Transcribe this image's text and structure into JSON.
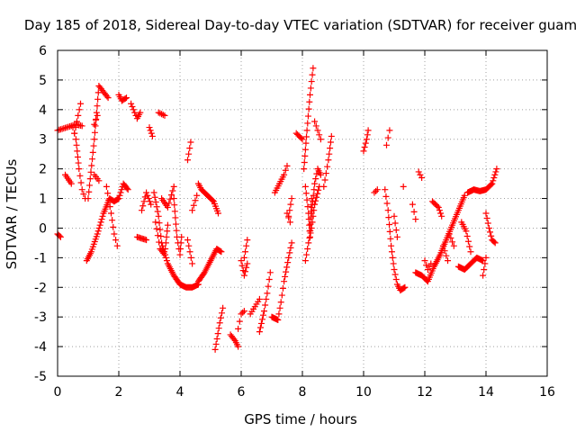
{
  "chart_data": {
    "type": "scatter",
    "title": "Day 185 of 2018, Sidereal Day-to-day VTEC variation (SDTVAR) for receiver guam",
    "xlabel": "GPS time / hours",
    "ylabel": "SDTVAR / TECUs",
    "xlim": [
      0,
      16
    ],
    "ylim": [
      -5,
      6
    ],
    "grid": true,
    "marker": "+",
    "colors": {
      "series": "#ff0000",
      "grid": "#a0a0a0",
      "axis": "#000000",
      "text": "#000000"
    },
    "x_ticks": [
      {
        "value": 0,
        "label": "0"
      },
      {
        "value": 2,
        "label": "2"
      },
      {
        "value": 4,
        "label": "4"
      },
      {
        "value": 6,
        "label": "6"
      },
      {
        "value": 8,
        "label": "8"
      },
      {
        "value": 10,
        "label": "10"
      },
      {
        "value": 12,
        "label": "12"
      },
      {
        "value": 14,
        "label": "14"
      },
      {
        "value": 16,
        "label": "16"
      }
    ],
    "y_ticks": [
      {
        "value": -5,
        "label": "-5"
      },
      {
        "value": -4,
        "label": "-4"
      },
      {
        "value": -3,
        "label": "-3"
      },
      {
        "value": -2,
        "label": "-2"
      },
      {
        "value": -1,
        "label": "-1"
      },
      {
        "value": 0,
        "label": "0"
      },
      {
        "value": 1,
        "label": "1"
      },
      {
        "value": 2,
        "label": "2"
      },
      {
        "value": 3,
        "label": "3"
      },
      {
        "value": 4,
        "label": "4"
      },
      {
        "value": 5,
        "label": "5"
      },
      {
        "value": 6,
        "label": "6"
      }
    ],
    "segments": [
      {
        "points": [
          [
            0.0,
            3.3
          ],
          [
            0.3,
            3.4
          ],
          [
            0.6,
            3.5
          ],
          [
            0.8,
            3.45
          ]
        ],
        "step": 0.05
      },
      {
        "points": [
          [
            0.0,
            -0.2
          ],
          [
            0.1,
            -0.3
          ]
        ],
        "step": 0.04
      },
      {
        "points": [
          [
            0.25,
            1.8
          ],
          [
            0.45,
            1.5
          ]
        ],
        "step": 0.04
      },
      {
        "points": [
          [
            0.5,
            3.4
          ],
          [
            0.6,
            3.0
          ],
          [
            0.7,
            2.0
          ],
          [
            0.8,
            1.3
          ],
          [
            0.9,
            1.0
          ]
        ],
        "step": 0.04
      },
      {
        "points": [
          [
            0.55,
            3.2
          ],
          [
            0.75,
            4.2
          ]
        ],
        "step": 0.05
      },
      {
        "points": [
          [
            0.95,
            -1.1
          ],
          [
            1.1,
            -0.8
          ],
          [
            1.3,
            -0.2
          ],
          [
            1.5,
            0.5
          ],
          [
            1.7,
            1.0
          ],
          [
            1.85,
            0.9
          ],
          [
            2.0,
            1.0
          ],
          [
            2.15,
            1.5
          ],
          [
            2.3,
            1.3
          ]
        ],
        "step": 0.03
      },
      {
        "points": [
          [
            1.0,
            1.0
          ],
          [
            1.2,
            3.0
          ],
          [
            1.35,
            4.8
          ],
          [
            1.5,
            4.6
          ],
          [
            1.65,
            4.4
          ]
        ],
        "step": 0.04
      },
      {
        "points": [
          [
            1.2,
            1.8
          ],
          [
            1.35,
            1.6
          ]
        ],
        "step": 0.05
      },
      {
        "points": [
          [
            1.6,
            1.4
          ],
          [
            1.75,
            0.5
          ],
          [
            1.85,
            -0.2
          ],
          [
            1.95,
            -0.6
          ]
        ],
        "step": 0.04
      },
      {
        "points": [
          [
            1.2,
            3.5
          ],
          [
            1.3,
            3.8
          ]
        ],
        "step": 0.05
      },
      {
        "points": [
          [
            2.0,
            4.5
          ],
          [
            2.1,
            4.3
          ],
          [
            2.25,
            4.4
          ]
        ],
        "step": 0.04
      },
      {
        "points": [
          [
            2.4,
            4.2
          ],
          [
            2.6,
            3.7
          ],
          [
            2.7,
            3.9
          ]
        ],
        "step": 0.04
      },
      {
        "points": [
          [
            2.6,
            -0.3
          ],
          [
            2.9,
            -0.4
          ]
        ],
        "step": 0.04
      },
      {
        "points": [
          [
            2.75,
            0.6
          ],
          [
            2.9,
            1.2
          ],
          [
            3.05,
            0.8
          ]
        ],
        "step": 0.04
      },
      {
        "points": [
          [
            3.0,
            3.4
          ],
          [
            3.1,
            3.1
          ]
        ],
        "step": 0.04
      },
      {
        "points": [
          [
            3.15,
            1.2
          ],
          [
            3.3,
            0.4
          ],
          [
            3.4,
            -0.5
          ],
          [
            3.6,
            -1.2
          ],
          [
            3.8,
            -1.6
          ],
          [
            4.0,
            -1.9
          ],
          [
            4.2,
            -2.0
          ],
          [
            4.4,
            -2.0
          ],
          [
            4.6,
            -1.9
          ]
        ],
        "step": 0.03
      },
      {
        "points": [
          [
            3.2,
            0.2
          ],
          [
            3.35,
            -0.7
          ],
          [
            3.5,
            -0.9
          ],
          [
            3.6,
            0.1
          ]
        ],
        "step": 0.04
      },
      {
        "points": [
          [
            3.3,
            3.9
          ],
          [
            3.5,
            3.8
          ]
        ],
        "step": 0.05
      },
      {
        "points": [
          [
            3.4,
            1.0
          ],
          [
            3.6,
            0.7
          ],
          [
            3.8,
            1.4
          ]
        ],
        "step": 0.04
      },
      {
        "points": [
          [
            3.8,
            1.0
          ],
          [
            3.9,
            -0.3
          ],
          [
            4.0,
            -0.9
          ],
          [
            4.05,
            -0.3
          ]
        ],
        "step": 0.03
      },
      {
        "points": [
          [
            4.25,
            -0.4
          ],
          [
            4.4,
            -1.2
          ]
        ],
        "step": 0.04
      },
      {
        "points": [
          [
            4.25,
            2.3
          ],
          [
            4.35,
            2.9
          ]
        ],
        "step": 0.04
      },
      {
        "points": [
          [
            4.4,
            0.6
          ],
          [
            4.55,
            1.1
          ]
        ],
        "step": 0.05
      },
      {
        "points": [
          [
            4.6,
            1.5
          ],
          [
            4.7,
            1.3
          ],
          [
            4.9,
            1.1
          ],
          [
            5.1,
            0.9
          ],
          [
            5.25,
            0.5
          ]
        ],
        "step": 0.03
      },
      {
        "points": [
          [
            4.6,
            -1.8
          ],
          [
            4.8,
            -1.5
          ],
          [
            5.0,
            -1.1
          ],
          [
            5.2,
            -0.7
          ],
          [
            5.35,
            -0.8
          ]
        ],
        "step": 0.03
      },
      {
        "points": [
          [
            5.15,
            -4.1
          ],
          [
            5.3,
            -3.2
          ],
          [
            5.4,
            -2.7
          ]
        ],
        "step": 0.03
      },
      {
        "points": [
          [
            5.65,
            -3.6
          ],
          [
            5.8,
            -3.8
          ],
          [
            5.9,
            -4.0
          ]
        ],
        "step": 0.04
      },
      {
        "points": [
          [
            5.9,
            -3.4
          ],
          [
            6.0,
            -2.9
          ],
          [
            6.1,
            -2.8
          ]
        ],
        "step": 0.04
      },
      {
        "points": [
          [
            6.0,
            -1.1
          ],
          [
            6.1,
            -1.6
          ],
          [
            6.2,
            -1.2
          ]
        ],
        "step": 0.03
      },
      {
        "points": [
          [
            6.1,
            -1.0
          ],
          [
            6.2,
            -0.4
          ]
        ],
        "step": 0.05
      },
      {
        "points": [
          [
            6.3,
            -2.9
          ],
          [
            6.6,
            -2.4
          ]
        ],
        "step": 0.05
      },
      {
        "points": [
          [
            6.6,
            -3.5
          ],
          [
            6.75,
            -2.8
          ],
          [
            6.85,
            -2.2
          ],
          [
            6.95,
            -1.5
          ]
        ],
        "step": 0.03
      },
      {
        "points": [
          [
            7.0,
            -3.0
          ],
          [
            7.2,
            -3.1
          ],
          [
            7.3,
            -2.5
          ],
          [
            7.4,
            -1.8
          ],
          [
            7.55,
            -1.0
          ],
          [
            7.65,
            -0.5
          ]
        ],
        "step": 0.03
      },
      {
        "points": [
          [
            7.1,
            1.2
          ],
          [
            7.25,
            1.5
          ],
          [
            7.4,
            1.8
          ],
          [
            7.5,
            2.1
          ]
        ],
        "step": 0.04
      },
      {
        "points": [
          [
            7.5,
            0.5
          ],
          [
            7.6,
            0.2
          ]
        ],
        "step": 0.05
      },
      {
        "points": [
          [
            7.55,
            0.4
          ],
          [
            7.65,
            1.0
          ]
        ],
        "step": 0.05
      },
      {
        "points": [
          [
            7.8,
            3.2
          ],
          [
            8.0,
            3.0
          ]
        ],
        "step": 0.04
      },
      {
        "points": [
          [
            8.05,
            2.0
          ],
          [
            8.15,
            3.3
          ],
          [
            8.25,
            4.5
          ],
          [
            8.35,
            5.4
          ]
        ],
        "step": 0.025
      },
      {
        "points": [
          [
            8.1,
            -1.1
          ],
          [
            8.2,
            -0.5
          ],
          [
            8.3,
            0.0
          ],
          [
            8.4,
            0.8
          ],
          [
            8.55,
            1.4
          ]
        ],
        "step": 0.03
      },
      {
        "points": [
          [
            8.1,
            1.4
          ],
          [
            8.2,
            0.5
          ],
          [
            8.25,
            -0.3
          ],
          [
            8.3,
            1.0
          ]
        ],
        "step": 0.03
      },
      {
        "points": [
          [
            8.3,
            0.5
          ],
          [
            8.4,
            1.5
          ],
          [
            8.5,
            2.0
          ],
          [
            8.6,
            1.8
          ]
        ],
        "step": 0.03
      },
      {
        "points": [
          [
            8.4,
            3.6
          ],
          [
            8.5,
            3.3
          ],
          [
            8.6,
            3.0
          ]
        ],
        "step": 0.04
      },
      {
        "points": [
          [
            8.7,
            1.4
          ],
          [
            8.85,
            2.3
          ],
          [
            8.95,
            3.1
          ]
        ],
        "step": 0.04
      },
      {
        "points": [
          [
            10.0,
            2.6
          ],
          [
            10.1,
            3.0
          ],
          [
            10.15,
            3.3
          ]
        ],
        "step": 0.03
      },
      {
        "points": [
          [
            10.35,
            1.2
          ],
          [
            10.45,
            1.3
          ]
        ],
        "step": 0.05
      },
      {
        "points": [
          [
            10.75,
            2.8
          ],
          [
            10.85,
            3.3
          ]
        ],
        "step": 0.05
      },
      {
        "points": [
          [
            10.7,
            1.3
          ],
          [
            10.8,
            0.6
          ],
          [
            10.9,
            -0.6
          ],
          [
            11.0,
            -1.4
          ],
          [
            11.1,
            -1.9
          ],
          [
            11.2,
            -2.1
          ],
          [
            11.35,
            -2.0
          ]
        ],
        "step": 0.03
      },
      {
        "points": [
          [
            11.0,
            0.4
          ],
          [
            11.1,
            -0.3
          ]
        ],
        "step": 0.05
      },
      {
        "points": [
          [
            11.3,
            1.4
          ]
        ],
        "step": 0.05
      },
      {
        "points": [
          [
            11.6,
            0.8
          ],
          [
            11.7,
            0.3
          ]
        ],
        "step": 0.05
      },
      {
        "points": [
          [
            11.7,
            -1.5
          ],
          [
            11.9,
            -1.6
          ],
          [
            12.1,
            -1.8
          ],
          [
            12.3,
            -1.3
          ],
          [
            12.5,
            -0.9
          ],
          [
            12.7,
            -0.4
          ],
          [
            12.9,
            0.1
          ],
          [
            13.1,
            0.6
          ],
          [
            13.3,
            1.1
          ]
        ],
        "step": 0.03
      },
      {
        "points": [
          [
            11.8,
            1.9
          ],
          [
            11.9,
            1.7
          ]
        ],
        "step": 0.05
      },
      {
        "points": [
          [
            12.0,
            -1.1
          ],
          [
            12.1,
            -1.4
          ],
          [
            12.2,
            -1.2
          ]
        ],
        "step": 0.04
      },
      {
        "points": [
          [
            12.25,
            0.9
          ],
          [
            12.45,
            0.7
          ],
          [
            12.55,
            0.4
          ]
        ],
        "step": 0.04
      },
      {
        "points": [
          [
            12.6,
            -0.6
          ],
          [
            12.75,
            -1.1
          ]
        ],
        "step": 0.05
      },
      {
        "points": [
          [
            12.8,
            -0.2
          ],
          [
            12.95,
            -0.6
          ]
        ],
        "step": 0.05
      },
      {
        "points": [
          [
            13.1,
            -1.3
          ],
          [
            13.3,
            -1.4
          ],
          [
            13.5,
            -1.2
          ],
          [
            13.7,
            -1.0
          ],
          [
            13.9,
            -1.1
          ]
        ],
        "step": 0.03
      },
      {
        "points": [
          [
            13.2,
            0.2
          ],
          [
            13.35,
            -0.1
          ],
          [
            13.5,
            -0.8
          ]
        ],
        "step": 0.04
      },
      {
        "points": [
          [
            13.4,
            1.2
          ],
          [
            13.6,
            1.3
          ],
          [
            13.8,
            1.25
          ],
          [
            14.0,
            1.3
          ],
          [
            14.2,
            1.5
          ],
          [
            14.35,
            2.0
          ]
        ],
        "step": 0.03
      },
      {
        "points": [
          [
            13.9,
            -1.6
          ],
          [
            14.0,
            -1.0
          ]
        ],
        "step": 0.05
      },
      {
        "points": [
          [
            14.0,
            0.5
          ],
          [
            14.1,
            0.0
          ],
          [
            14.2,
            -0.4
          ],
          [
            14.3,
            -0.5
          ]
        ],
        "step": 0.03
      }
    ]
  }
}
